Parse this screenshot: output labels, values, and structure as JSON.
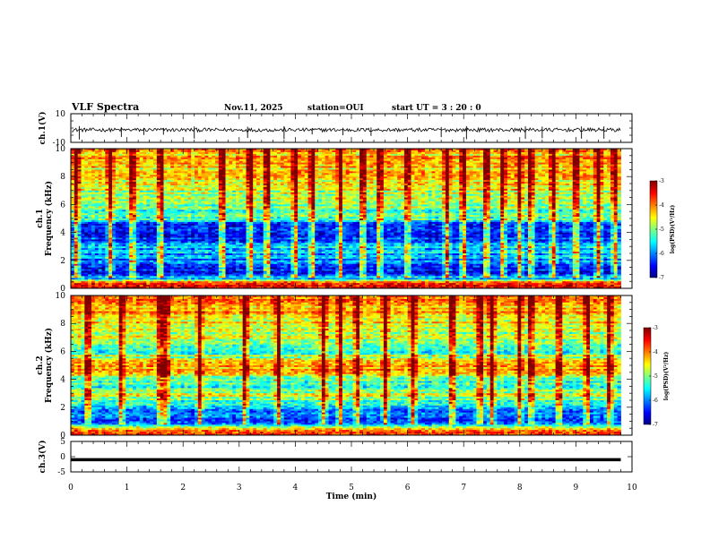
{
  "chart_data": {
    "type": "heatmap",
    "title": "VLF Spectra",
    "date": "Nov.11, 2025",
    "station": "station=OUI",
    "start_ut": "start  UT =   3 : 20 : 0",
    "xlabel": "Time  (min)",
    "xlim": [
      0,
      10
    ],
    "x_ticks": [
      "0",
      "1",
      "2",
      "3",
      "4",
      "5",
      "6",
      "7",
      "8",
      "9",
      "10"
    ],
    "data_end_min": 9.8,
    "panels": [
      {
        "id": "ch1-waveform",
        "type": "line",
        "ylabel": "ch.1(V)",
        "ylim": [
          -10,
          10
        ],
        "y_ticks": [
          "10",
          "-10"
        ],
        "mean": -1.3,
        "noise_amplitude": 0.6,
        "spike_times_min": [
          0.15,
          0.9,
          1.3,
          1.65,
          2.2,
          3.15,
          3.8,
          4.3,
          4.85,
          5.35,
          6.6,
          7.05,
          8.1,
          8.4,
          9.1,
          9.5
        ]
      },
      {
        "id": "ch1-spectrogram",
        "type": "heatmap",
        "ylabel_line1": "ch.1",
        "ylabel_line2": "Frequency (kHz)",
        "ylim": [
          0,
          10
        ],
        "y_ticks": [
          "0",
          "2",
          "4",
          "6",
          "8",
          "10"
        ],
        "colorbar_range": [
          -7,
          -3
        ],
        "colorbar_ticks": [
          "-3",
          "-4",
          "-5",
          "-6",
          "-7"
        ],
        "colorbar_label": "log(PSD)(V²/Hz)",
        "profile_khz": [
          [
            0,
            -3.6
          ],
          [
            0.3,
            -3.4
          ],
          [
            0.6,
            -5.3
          ],
          [
            1.0,
            -6.4
          ],
          [
            1.5,
            -6.5
          ],
          [
            2.0,
            -6.0
          ],
          [
            2.4,
            -5.9
          ],
          [
            3.0,
            -5.6
          ],
          [
            3.5,
            -6.4
          ],
          [
            4.0,
            -6.8
          ],
          [
            4.5,
            -6.4
          ],
          [
            5.0,
            -5.4
          ],
          [
            5.5,
            -5.2
          ],
          [
            6.0,
            -5.0
          ],
          [
            7.0,
            -4.8
          ],
          [
            8.0,
            -4.5
          ],
          [
            9.0,
            -4.3
          ],
          [
            10.0,
            -4.2
          ]
        ],
        "burst_times_min": [
          0.1,
          0.7,
          1.1,
          1.6,
          2.7,
          3.2,
          3.5,
          4.0,
          4.3,
          4.8,
          5.2,
          5.5,
          6.0,
          6.7,
          7.0,
          7.4,
          7.7,
          8.0,
          8.2,
          8.6,
          9.0,
          9.4,
          9.7
        ]
      },
      {
        "id": "ch2-spectrogram",
        "type": "heatmap",
        "ylabel_line1": "ch.2",
        "ylabel_line2": "Frequency (kHz)",
        "ylim": [
          0,
          10
        ],
        "y_ticks": [
          "0",
          "2",
          "4",
          "6",
          "8",
          "10"
        ],
        "colorbar_range": [
          -7,
          -3
        ],
        "colorbar_ticks": [
          "-3",
          "-4",
          "-5",
          "-6",
          "-7"
        ],
        "colorbar_label": "log(PSD)(V²/Hz)",
        "profile_khz": [
          [
            0,
            -3.8
          ],
          [
            0.4,
            -4.3
          ],
          [
            0.8,
            -5.8
          ],
          [
            1.2,
            -6.3
          ],
          [
            1.6,
            -6.3
          ],
          [
            2.0,
            -5.6
          ],
          [
            2.4,
            -5.4
          ],
          [
            2.8,
            -4.6
          ],
          [
            3.2,
            -5.2
          ],
          [
            3.8,
            -5.3
          ],
          [
            4.2,
            -4.8
          ],
          [
            4.6,
            -4.1
          ],
          [
            5.0,
            -4.3
          ],
          [
            5.4,
            -4.6
          ],
          [
            6.0,
            -5.3
          ],
          [
            6.6,
            -5.0
          ],
          [
            7.5,
            -4.6
          ],
          [
            8.5,
            -4.3
          ],
          [
            10.0,
            -4.1
          ]
        ],
        "burst_times_min": [
          0.3,
          0.9,
          1.6,
          1.7,
          2.3,
          3.1,
          3.7,
          4.5,
          4.8,
          5.1,
          5.6,
          6.1,
          6.8,
          7.3,
          7.5,
          8.0,
          8.2,
          8.7,
          9.2,
          9.6
        ]
      },
      {
        "id": "ch3-waveform",
        "type": "line",
        "ylabel": "ch.3(V)",
        "ylim": [
          -5,
          5
        ],
        "y_ticks": [
          "5",
          "0",
          "-5"
        ],
        "mean": -1.0
      }
    ]
  },
  "colors": {
    "jet": [
      "#00007f",
      "#0000ff",
      "#007fff",
      "#00ffff",
      "#7fff7f",
      "#ffff00",
      "#ff7f00",
      "#ff0000",
      "#7f0000"
    ]
  }
}
